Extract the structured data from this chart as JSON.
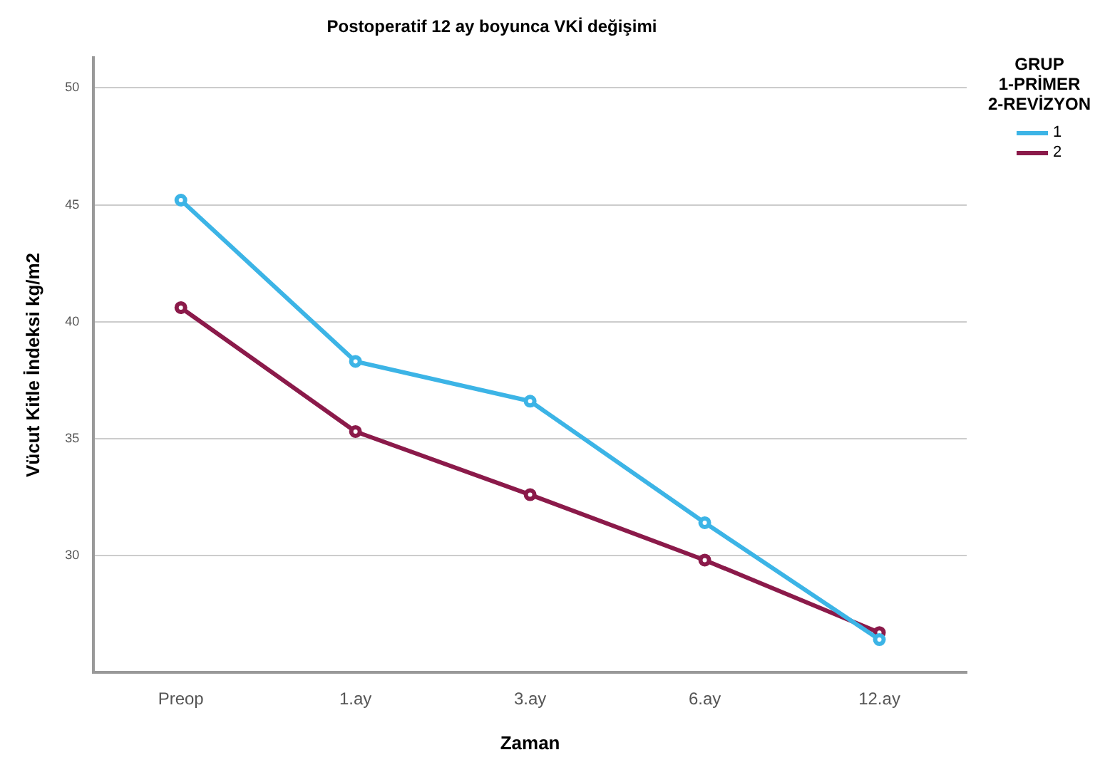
{
  "chart_data": {
    "type": "line",
    "title": "Postoperatif 12 ay boyunca VKİ değişimi",
    "xlabel": "Zaman",
    "ylabel": "Vücut Kitle İndeksi kg/m2",
    "legend_title": "GRUP\n1-PRİMER\n2-REVİZYON",
    "categories": [
      "Preop",
      "1.ay",
      "3.ay",
      "6.ay",
      "12.ay"
    ],
    "series": [
      {
        "name": "1",
        "color": "#3cb4e6",
        "values": [
          45.2,
          38.3,
          36.6,
          31.4,
          26.4
        ]
      },
      {
        "name": "2",
        "color": "#8b1a4a",
        "values": [
          40.6,
          35.3,
          32.6,
          29.8,
          26.7
        ]
      }
    ],
    "ylim": [
      25,
      51.3
    ],
    "yticks": [
      30,
      35,
      40,
      45,
      50
    ],
    "grid": "y",
    "legend": "top right",
    "marker": "circle",
    "line_style": "solid"
  }
}
